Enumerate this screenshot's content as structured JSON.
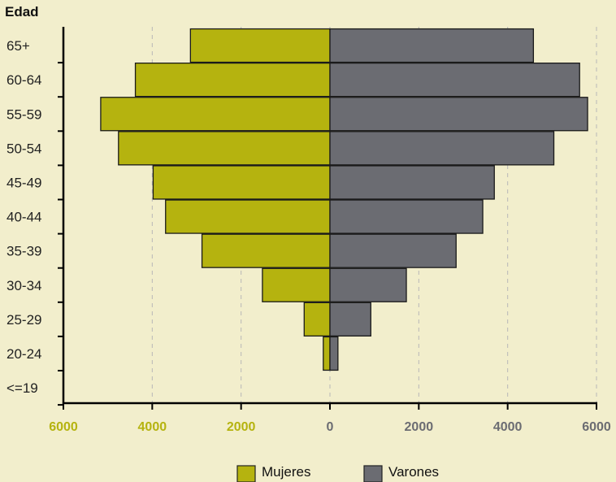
{
  "chart_data": {
    "type": "bar",
    "orientation": "horizontal",
    "style": "population-pyramid",
    "ylabel": "Edad",
    "categories": [
      "<=19",
      "20-24",
      "25-29",
      "30-34",
      "35-39",
      "40-44",
      "45-49",
      "50-54",
      "55-59",
      "60-64",
      "65+"
    ],
    "series": [
      {
        "name": "Mujeres",
        "side": "left",
        "color": "#b5b30f",
        "values": [
          0,
          150,
          580,
          1520,
          2880,
          3700,
          3980,
          4760,
          5160,
          4380,
          3140
        ]
      },
      {
        "name": "Varones",
        "side": "right",
        "color": "#6b6c72",
        "values": [
          0,
          180,
          920,
          1720,
          2840,
          3440,
          3700,
          5040,
          5800,
          5620,
          4580
        ]
      }
    ],
    "xlim": [
      -6000,
      6000
    ],
    "x_ticks": [
      {
        "value": -6000,
        "label": "6000",
        "color": "#b5b30f"
      },
      {
        "value": -4000,
        "label": "4000",
        "color": "#b5b30f"
      },
      {
        "value": -2000,
        "label": "2000",
        "color": "#b5b30f"
      },
      {
        "value": 0,
        "label": "0",
        "color": "#6b6c72"
      },
      {
        "value": 2000,
        "label": "2000",
        "color": "#6b6c72"
      },
      {
        "value": 4000,
        "label": "4000",
        "color": "#6b6c72"
      },
      {
        "value": 6000,
        "label": "6000",
        "color": "#6b6c72"
      }
    ],
    "grid": "vertical-dashed",
    "legend": "bottom-center"
  },
  "colors": {
    "background": "#f2eecc",
    "axis": "#000000",
    "grid": "#b8b8b8"
  }
}
